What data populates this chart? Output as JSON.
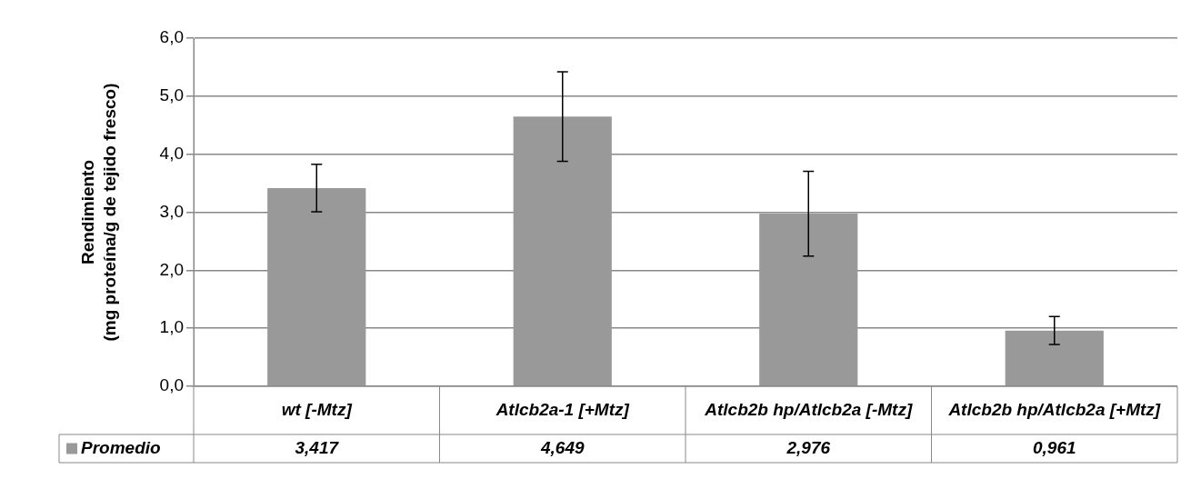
{
  "chart_data": {
    "type": "bar",
    "ylabel": "Rendimiento\n(mg proteína/g de tejido fresco)",
    "categories": [
      "wt [-Mtz]",
      "Atlcb2a-1 [+Mtz]",
      "Atlcb2b hp/Atlcb2a [-Mtz]",
      "Atlcb2b hp/Atlcb2a [+Mtz]"
    ],
    "series": [
      {
        "name": "Promedio",
        "color": "#999999",
        "values": [
          3.417,
          4.649,
          2.976,
          0.961
        ],
        "errors": [
          0.41,
          0.77,
          0.73,
          0.24
        ],
        "value_labels": [
          "3,417",
          "4,649",
          "2,976",
          "0,961"
        ]
      }
    ],
    "ylim": [
      0,
      6
    ],
    "yticks": [
      {
        "value": 0,
        "label": "0,0"
      },
      {
        "value": 1,
        "label": "1,0"
      },
      {
        "value": 2,
        "label": "2,0"
      },
      {
        "value": 3,
        "label": "3,0"
      },
      {
        "value": 4,
        "label": "4,0"
      },
      {
        "value": 5,
        "label": "5,0"
      },
      {
        "value": 6,
        "label": "6,0"
      }
    ],
    "grid": "y"
  }
}
